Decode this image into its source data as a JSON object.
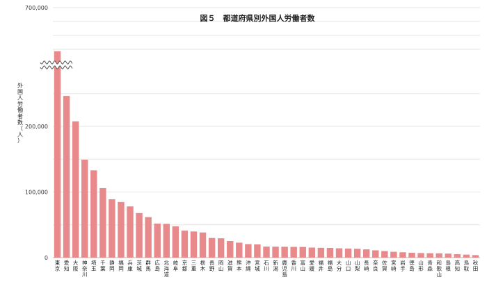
{
  "chart_data": {
    "type": "bar",
    "title": "図５　都道府県別外国人労働者数",
    "ylabel": "外国人労働者数（人）",
    "xlabel": "",
    "ylim": [
      0,
      700000
    ],
    "axis_break": true,
    "grid": true,
    "yticks": [
      {
        "label": "0",
        "value": 0
      },
      {
        "label": "100,000",
        "value": 100000
      },
      {
        "label": "200,000",
        "value": 200000
      },
      {
        "label": "700,000",
        "value": 700000
      }
    ],
    "bar_color": "#e8898b",
    "categories": [
      "東京",
      "愛知",
      "大阪",
      "神奈川",
      "埼玉",
      "千葉",
      "静岡",
      "福岡",
      "兵庫",
      "茨城",
      "群馬",
      "広島",
      "北海道",
      "岐阜",
      "京都",
      "三重",
      "栃木",
      "長野",
      "岡山",
      "滋賀",
      "熊本",
      "沖縄",
      "宮城",
      "石川",
      "新潟",
      "鹿児島",
      "香川",
      "富山",
      "愛媛",
      "福井",
      "福島",
      "大分",
      "山口",
      "山梨",
      "長崎",
      "奈良",
      "佐賀",
      "宮崎",
      "岩手",
      "徳島",
      "山形",
      "青森",
      "和歌山",
      "島根",
      "高知",
      "鳥取",
      "秋田"
    ],
    "values": [
      542992,
      246483,
      207736,
      149282,
      133008,
      105915,
      88982,
      84785,
      78044,
      67907,
      61723,
      51806,
      51436,
      47621,
      41102,
      39830,
      38316,
      29954,
      29424,
      25405,
      22828,
      20566,
      20136,
      16768,
      16664,
      16541,
      16363,
      16253,
      15337,
      14983,
      14786,
      14217,
      13781,
      13441,
      12586,
      11101,
      9983,
      8905,
      8166,
      7431,
      6976,
      6715,
      6509,
      6103,
      5201,
      4590,
      3826
    ],
    "axis_scale": {
      "lower_top": 290000,
      "upper_bottom": 500000,
      "upper_top": 700000
    }
  }
}
